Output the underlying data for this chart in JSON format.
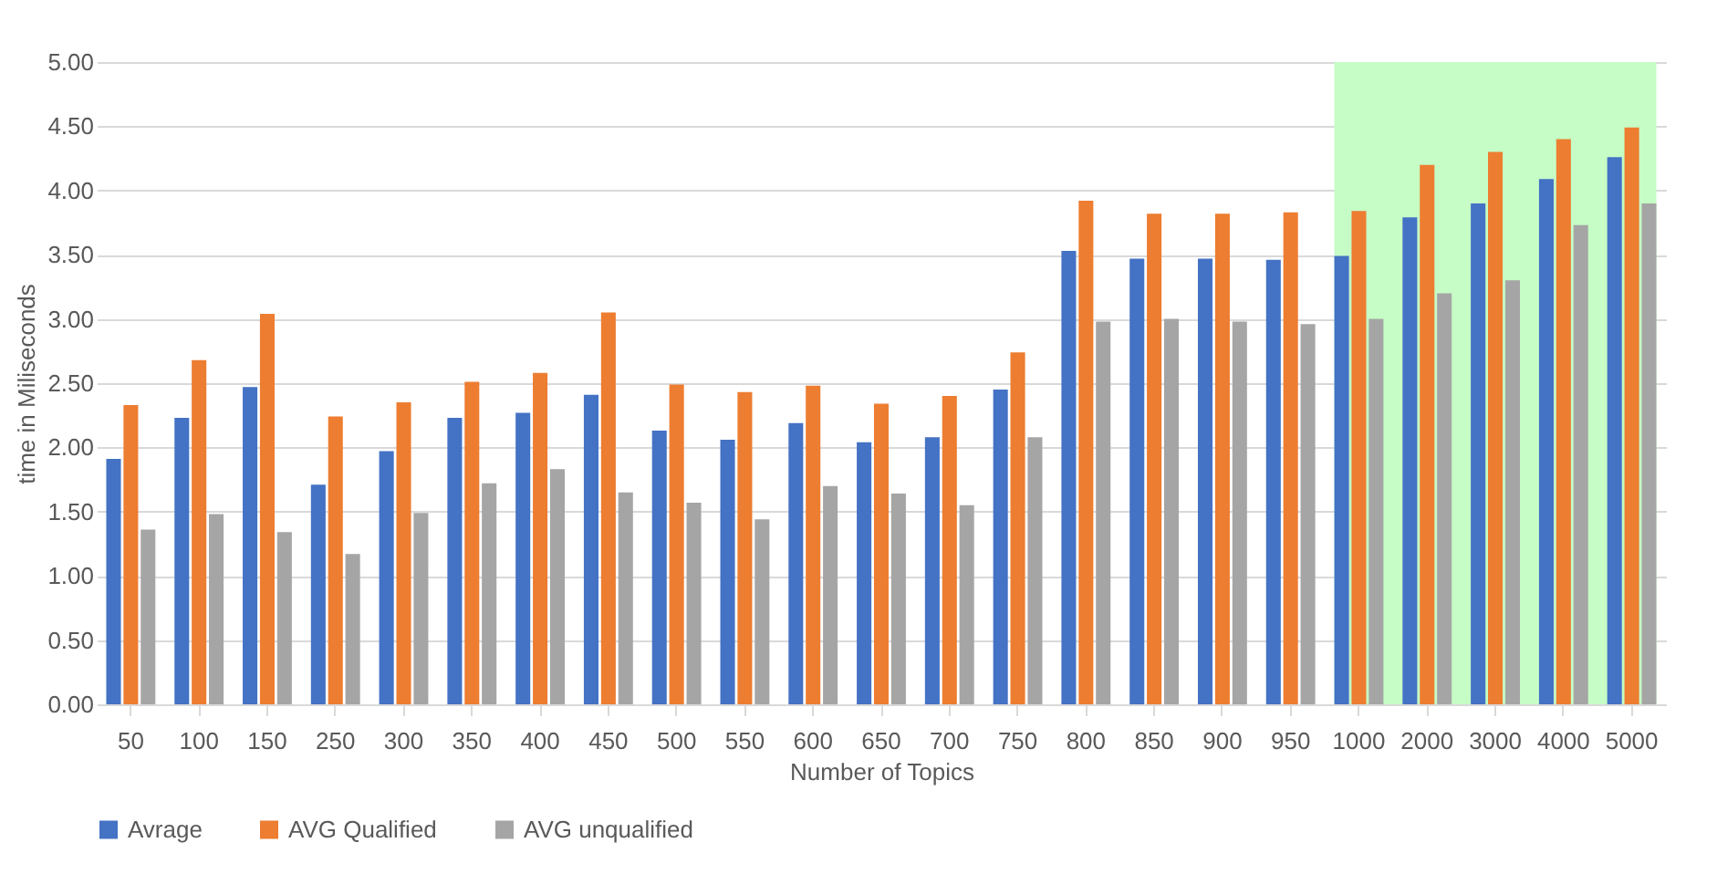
{
  "chart_data": {
    "type": "bar",
    "xlabel": "Number of Topics",
    "ylabel": "time in Miliseconds",
    "categories": [
      "50",
      "100",
      "150",
      "250",
      "300",
      "350",
      "400",
      "450",
      "500",
      "550",
      "600",
      "650",
      "700",
      "750",
      "800",
      "850",
      "900",
      "950",
      "1000",
      "2000",
      "3000",
      "4000",
      "5000"
    ],
    "series": [
      {
        "name": "Avrage",
        "color": "#4472c4",
        "values": [
          1.91,
          2.23,
          2.47,
          1.71,
          1.97,
          2.23,
          2.27,
          2.41,
          2.13,
          2.06,
          2.19,
          2.04,
          2.08,
          2.45,
          3.53,
          3.47,
          3.47,
          3.46,
          3.49,
          3.79,
          3.9,
          4.09,
          4.26
        ]
      },
      {
        "name": "AVG Qualified",
        "color": "#ed7d31",
        "values": [
          2.33,
          2.68,
          3.04,
          2.24,
          2.35,
          2.51,
          2.58,
          3.05,
          2.49,
          2.43,
          2.48,
          2.34,
          2.4,
          2.74,
          3.92,
          3.82,
          3.82,
          3.83,
          3.84,
          4.2,
          4.3,
          4.4,
          4.49
        ]
      },
      {
        "name": "AVG unqualified",
        "color": "#a5a5a5",
        "values": [
          1.36,
          1.48,
          1.34,
          1.17,
          1.49,
          1.72,
          1.83,
          1.65,
          1.57,
          1.44,
          1.7,
          1.64,
          1.55,
          2.08,
          2.98,
          3.0,
          2.98,
          2.96,
          3.0,
          3.2,
          3.3,
          3.73,
          3.9
        ]
      }
    ],
    "ylim": [
      0,
      5
    ],
    "yticks": [
      {
        "value": 0,
        "label": "0.00"
      },
      {
        "value": 0.5,
        "label": "0.50"
      },
      {
        "value": 1,
        "label": "1.00"
      },
      {
        "value": 1.5,
        "label": "1.50"
      },
      {
        "value": 2,
        "label": "2.00"
      },
      {
        "value": 2.5,
        "label": "2.50"
      },
      {
        "value": 3,
        "label": "3.00"
      },
      {
        "value": 3.5,
        "label": "3.50"
      },
      {
        "value": 4,
        "label": "4.00"
      },
      {
        "value": 4.5,
        "label": "4.50"
      },
      {
        "value": 5,
        "label": "5.00"
      }
    ],
    "bands": [
      {
        "axis": "x",
        "from": "1000",
        "to": "5000",
        "color": "#c6fcc6"
      }
    ],
    "grid": "y",
    "legend": "bottom"
  }
}
